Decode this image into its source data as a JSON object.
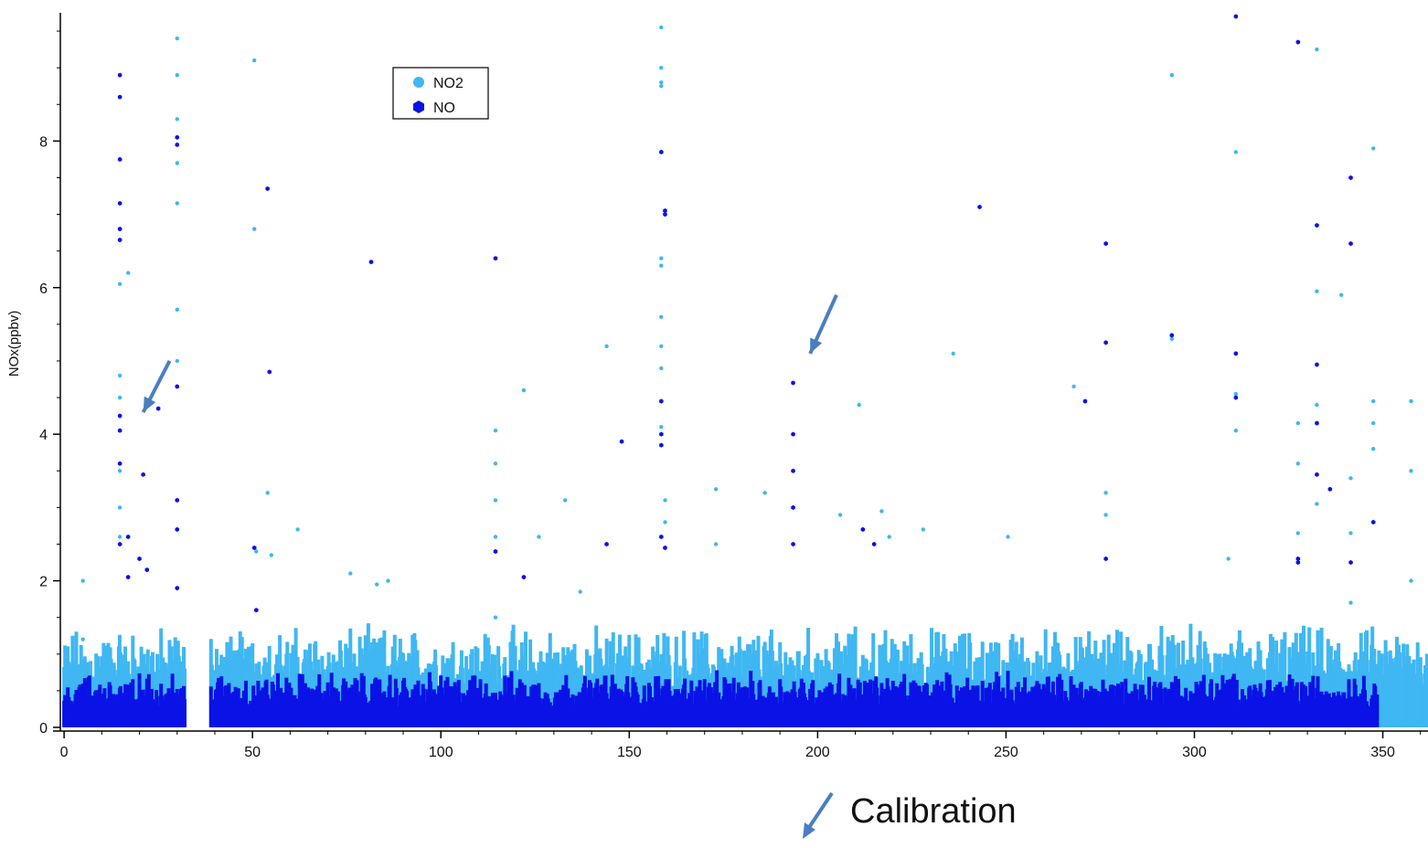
{
  "chart_data": {
    "type": "scatter",
    "title": "",
    "xlabel": "",
    "ylabel": "NOx(ppbv)",
    "xlim": [
      -1,
      362
    ],
    "ylim": [
      -0.05,
      9.75
    ],
    "xticks": [
      0,
      50,
      100,
      150,
      200,
      250,
      300,
      350
    ],
    "yticks": [
      0,
      2,
      4,
      6,
      8
    ],
    "grid": false,
    "legend_position": "top-left",
    "data_gap": [
      32,
      39
    ],
    "annotation": "Calibration",
    "annotation_arrows": [
      {
        "from": [
          28,
          5.0
        ],
        "to": [
          21,
          4.3
        ]
      },
      {
        "from": [
          205,
          5.9
        ],
        "to": [
          198,
          5.1
        ]
      }
    ],
    "series": [
      {
        "name": "NO2",
        "color": "#3fb7f2",
        "marker": "circle",
        "baseline_band": [
          0.05,
          0.55
        ],
        "x": [
          5,
          5,
          14.8,
          14.8,
          14.8,
          14.8,
          14.8,
          14.8,
          17,
          30,
          30,
          30,
          30,
          30,
          30,
          30,
          50.5,
          50.5,
          51,
          54,
          55,
          62,
          76,
          83,
          86,
          114.5,
          114.5,
          114.5,
          114.5,
          114.5,
          122,
          126,
          133,
          137,
          144,
          158.5,
          158.5,
          158.5,
          158.5,
          158.5,
          158.5,
          158.5,
          158.5,
          158.5,
          158.5,
          159.5,
          159.5,
          173,
          173,
          186,
          206,
          211,
          217,
          219,
          228,
          236,
          250.5,
          268,
          276.5,
          276.5,
          294,
          294,
          309,
          311,
          311,
          311,
          327.5,
          327.5,
          327.5,
          332.5,
          332.5,
          332.5,
          332.5,
          339,
          341.5,
          341.5,
          341.5,
          347.5,
          347.5,
          347.5,
          347.5,
          357.5,
          357.5,
          357.5
        ],
        "y": [
          2.0,
          1.2,
          6.05,
          4.8,
          4.5,
          3.5,
          3.0,
          2.6,
          6.2,
          9.4,
          8.9,
          8.3,
          7.7,
          7.15,
          5.7,
          5.0,
          9.1,
          6.8,
          2.4,
          3.2,
          2.35,
          2.7,
          2.1,
          1.95,
          2.0,
          4.05,
          3.6,
          3.1,
          2.6,
          1.5,
          4.6,
          2.6,
          3.1,
          1.85,
          5.2,
          9.55,
          9.0,
          8.8,
          8.75,
          6.4,
          6.3,
          5.6,
          5.2,
          4.9,
          4.1,
          3.1,
          2.8,
          3.25,
          2.5,
          3.2,
          2.9,
          4.4,
          2.95,
          2.6,
          2.7,
          5.1,
          2.6,
          4.65,
          3.2,
          2.9,
          8.9,
          5.3,
          2.3,
          7.85,
          4.55,
          4.05,
          4.15,
          3.6,
          2.65,
          9.25,
          5.95,
          4.4,
          3.05,
          5.9,
          3.4,
          2.65,
          1.7,
          7.9,
          4.45,
          4.15,
          3.8,
          4.45,
          3.5,
          2.0
        ]
      },
      {
        "name": "NO",
        "color": "#0a12e6",
        "marker": "hexagon",
        "baseline_band": [
          0.0,
          0.3
        ],
        "x": [
          14.8,
          14.8,
          14.8,
          14.8,
          14.8,
          14.8,
          14.8,
          14.8,
          14.8,
          14.8,
          17,
          17,
          20,
          21,
          22,
          25,
          30,
          30,
          30,
          30,
          30,
          30,
          50.5,
          51,
          54,
          54.5,
          81.5,
          114.5,
          114.5,
          122,
          144,
          148,
          158.5,
          158.5,
          158.5,
          158.5,
          158.5,
          159.5,
          159.5,
          159.5,
          193.5,
          193.5,
          193.5,
          193.5,
          193.5,
          212,
          215,
          243,
          271,
          276.5,
          276.5,
          276.5,
          294,
          311,
          311,
          311,
          327.5,
          327.5,
          327.5,
          332.5,
          332.5,
          332.5,
          332.5,
          336,
          341.5,
          341.5,
          341.5,
          347.5
        ],
        "y": [
          8.9,
          8.6,
          7.75,
          7.15,
          6.8,
          6.65,
          4.25,
          4.05,
          3.6,
          2.5,
          2.6,
          2.05,
          2.3,
          3.45,
          2.15,
          4.35,
          8.05,
          7.95,
          4.65,
          3.1,
          2.7,
          1.9,
          2.45,
          1.6,
          7.35,
          4.85,
          6.35,
          6.4,
          2.4,
          2.05,
          2.5,
          3.9,
          7.85,
          4.45,
          4.0,
          3.85,
          2.6,
          7.05,
          7.0,
          2.45,
          4.7,
          4.0,
          3.5,
          3.0,
          2.5,
          2.7,
          2.5,
          7.1,
          4.45,
          6.6,
          5.25,
          2.3,
          5.35,
          9.7,
          5.1,
          4.5,
          9.35,
          2.3,
          2.25,
          6.85,
          4.95,
          4.15,
          3.45,
          3.25,
          7.5,
          6.6,
          2.25,
          2.8
        ]
      }
    ]
  }
}
